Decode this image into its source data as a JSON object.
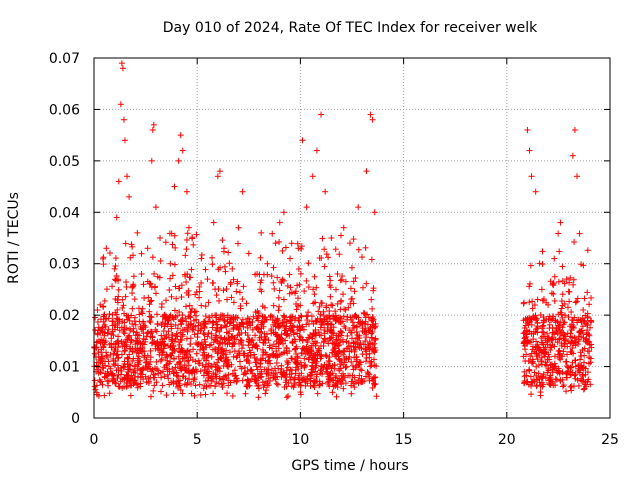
{
  "chart_data": {
    "type": "scatter",
    "title": "Day 010 of 2024, Rate Of TEC Index for receiver welk",
    "xlabel": "GPS time / hours",
    "ylabel": "ROTI / TECUs",
    "xlim": [
      0,
      25
    ],
    "ylim": [
      0,
      0.07
    ],
    "xticks": [
      0,
      5,
      10,
      15,
      20,
      25
    ],
    "xtick_labels": [
      "0",
      "5",
      "10",
      "15",
      "20",
      "25"
    ],
    "yticks": [
      0,
      0.01,
      0.02,
      0.03,
      0.04,
      0.05,
      0.06,
      0.07
    ],
    "ytick_labels": [
      "0",
      "0.01",
      "0.02",
      "0.03",
      "0.04",
      "0.05",
      "0.06",
      "0.07"
    ],
    "grid": true,
    "marker": "+",
    "series": [
      {
        "name": "ROTI",
        "color": "#ff0000",
        "segments": [
          {
            "x_start": 0.0,
            "x_end": 13.7
          },
          {
            "x_start": 20.8,
            "x_end": 24.1
          }
        ],
        "points": [
          [
            0.1,
            0.009
          ],
          [
            0.3,
            0.022
          ],
          [
            0.4,
            0.012
          ],
          [
            0.5,
            0.016
          ],
          [
            0.6,
            0.033
          ],
          [
            0.7,
            0.011
          ],
          [
            0.9,
            0.018
          ],
          [
            1.0,
            0.029
          ],
          [
            1.1,
            0.039
          ],
          [
            1.2,
            0.046
          ],
          [
            1.3,
            0.061
          ],
          [
            1.35,
            0.069
          ],
          [
            1.4,
            0.068
          ],
          [
            1.45,
            0.058
          ],
          [
            1.5,
            0.054
          ],
          [
            1.6,
            0.047
          ],
          [
            1.7,
            0.043
          ],
          [
            1.9,
            0.026
          ],
          [
            2.1,
            0.036
          ],
          [
            2.3,
            0.028
          ],
          [
            2.6,
            0.033
          ],
          [
            2.8,
            0.05
          ],
          [
            2.85,
            0.056
          ],
          [
            2.9,
            0.057
          ],
          [
            3.0,
            0.041
          ],
          [
            3.2,
            0.035
          ],
          [
            3.4,
            0.02
          ],
          [
            3.7,
            0.03
          ],
          [
            3.9,
            0.045
          ],
          [
            4.1,
            0.05
          ],
          [
            4.2,
            0.055
          ],
          [
            4.3,
            0.052
          ],
          [
            4.5,
            0.044
          ],
          [
            4.6,
            0.037
          ],
          [
            4.9,
            0.024
          ],
          [
            5.2,
            0.031
          ],
          [
            5.5,
            0.027
          ],
          [
            5.8,
            0.038
          ],
          [
            6.0,
            0.047
          ],
          [
            6.1,
            0.048
          ],
          [
            6.3,
            0.033
          ],
          [
            6.7,
            0.029
          ],
          [
            7.0,
            0.037
          ],
          [
            7.2,
            0.044
          ],
          [
            7.5,
            0.032
          ],
          [
            7.9,
            0.028
          ],
          [
            8.1,
            0.036
          ],
          [
            8.4,
            0.03
          ],
          [
            8.8,
            0.034
          ],
          [
            9.0,
            0.038
          ],
          [
            9.2,
            0.04
          ],
          [
            9.5,
            0.031
          ],
          [
            9.9,
            0.033
          ],
          [
            10.1,
            0.054
          ],
          [
            10.3,
            0.041
          ],
          [
            10.6,
            0.047
          ],
          [
            10.8,
            0.052
          ],
          [
            11.0,
            0.059
          ],
          [
            11.2,
            0.044
          ],
          [
            11.5,
            0.035
          ],
          [
            11.8,
            0.028
          ],
          [
            12.1,
            0.037
          ],
          [
            12.4,
            0.034
          ],
          [
            12.8,
            0.041
          ],
          [
            13.2,
            0.048
          ],
          [
            13.4,
            0.059
          ],
          [
            13.5,
            0.058
          ],
          [
            13.6,
            0.04
          ],
          [
            20.9,
            0.015
          ],
          [
            21.0,
            0.056
          ],
          [
            21.1,
            0.052
          ],
          [
            21.2,
            0.047
          ],
          [
            21.4,
            0.044
          ],
          [
            21.7,
            0.025
          ],
          [
            22.0,
            0.022
          ],
          [
            22.3,
            0.031
          ],
          [
            22.6,
            0.038
          ],
          [
            22.9,
            0.027
          ],
          [
            23.2,
            0.051
          ],
          [
            23.3,
            0.056
          ],
          [
            23.4,
            0.047
          ],
          [
            23.7,
            0.021
          ],
          [
            24.0,
            0.016
          ]
        ]
      }
    ]
  }
}
